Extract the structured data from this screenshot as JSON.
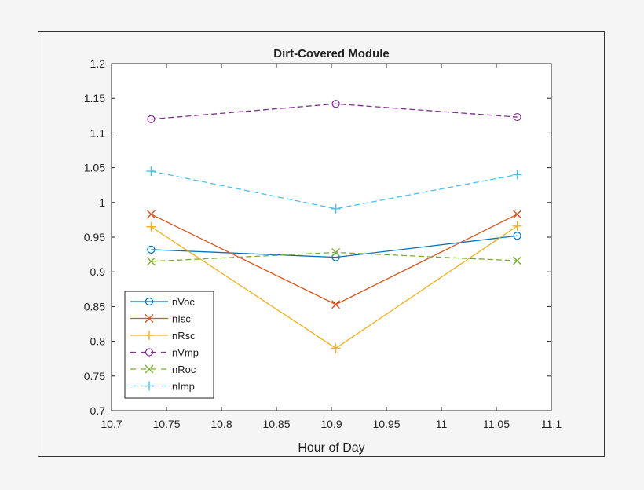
{
  "chart_data": {
    "type": "line",
    "title": "Dirt-Covered Module",
    "xlabel": "Hour of Day",
    "ylabel": "",
    "xlim": [
      10.7,
      11.1
    ],
    "ylim": [
      0.7,
      1.2
    ],
    "xticks": [
      "10.7",
      "10.75",
      "10.8",
      "10.85",
      "10.9",
      "10.95",
      "11",
      "11.05",
      "11.1"
    ],
    "yticks": [
      "0.7",
      "0.75",
      "0.8",
      "0.85",
      "0.9",
      "0.95",
      "1",
      "1.05",
      "1.1",
      "1.15",
      "1.2"
    ],
    "grid": false,
    "legend_position": "bottom-left",
    "x": [
      10.736,
      10.904,
      11.069
    ],
    "series": [
      {
        "name": "nVoc",
        "values": [
          0.932,
          0.921,
          0.952
        ],
        "color": "#0072bd",
        "line": "solid",
        "marker": "circle"
      },
      {
        "name": "nIsc",
        "values": [
          0.983,
          0.853,
          0.983
        ],
        "color": "#d95319",
        "line": "solid",
        "marker": "x"
      },
      {
        "name": "nRsc",
        "values": [
          0.965,
          0.79,
          0.966
        ],
        "color": "#edb120",
        "line": "solid",
        "marker": "plus"
      },
      {
        "name": "nVmp",
        "values": [
          1.12,
          1.142,
          1.123
        ],
        "color": "#7e2f8e",
        "line": "dashed",
        "marker": "circle"
      },
      {
        "name": "nRoc",
        "values": [
          0.915,
          0.928,
          0.916
        ],
        "color": "#77ac30",
        "line": "dashed",
        "marker": "x"
      },
      {
        "name": "nImp",
        "values": [
          1.045,
          0.991,
          1.04
        ],
        "color": "#4dbeee",
        "line": "dashed",
        "marker": "plus"
      }
    ]
  }
}
